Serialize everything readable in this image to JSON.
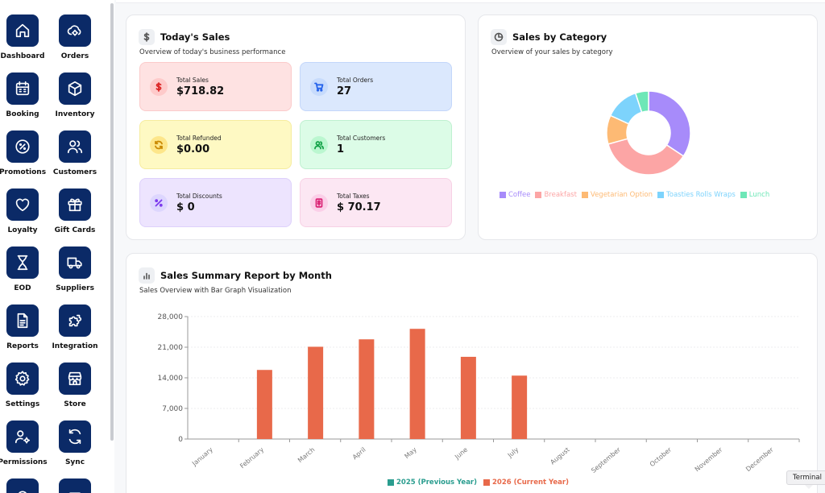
{
  "sidebar": {
    "items": [
      {
        "label": "Dashboard",
        "icon": "home-icon"
      },
      {
        "label": "Orders",
        "icon": "orders-icon"
      },
      {
        "label": "Booking",
        "icon": "calendar-icon"
      },
      {
        "label": "Inventory",
        "icon": "box-icon"
      },
      {
        "label": "Promotions",
        "icon": "promotion-icon"
      },
      {
        "label": "Customers",
        "icon": "users-icon"
      },
      {
        "label": "Loyalty",
        "icon": "heart-icon"
      },
      {
        "label": "Gift Cards",
        "icon": "gift-icon"
      },
      {
        "label": "EOD",
        "icon": "hourglass-icon"
      },
      {
        "label": "Suppliers",
        "icon": "truck-icon"
      },
      {
        "label": "Reports",
        "icon": "document-icon"
      },
      {
        "label": "Integration",
        "icon": "puzzle-icon"
      },
      {
        "label": "Settings",
        "icon": "gear-icon"
      },
      {
        "label": "Store",
        "icon": "store-icon"
      },
      {
        "label": "Permissions",
        "icon": "user-gear-icon"
      },
      {
        "label": "Sync",
        "icon": "sync-icon"
      }
    ]
  },
  "todays_sales": {
    "title": "Today's Sales",
    "subtitle": "Overview of today's business performance",
    "tiles": [
      {
        "label": "Total Sales",
        "value": "$718.82",
        "icon": "dollar-icon"
      },
      {
        "label": "Total Orders",
        "value": "27",
        "icon": "cart-icon"
      },
      {
        "label": "Total Refunded",
        "value": "$0.00",
        "icon": "refund-icon"
      },
      {
        "label": "Total Customers",
        "value": "1",
        "icon": "users-icon"
      },
      {
        "label": "Total Discounts",
        "value": "$ 0",
        "icon": "percent-icon"
      },
      {
        "label": "Total Taxes",
        "value": "$ 70.17",
        "icon": "tax-icon"
      }
    ]
  },
  "sales_by_category": {
    "title": "Sales by Category",
    "subtitle": "Overview of your sales by category"
  },
  "sales_summary": {
    "title": "Sales Summary Report by Month",
    "subtitle": "Sales Overview with Bar Graph Visualization"
  },
  "terminal_label": "Terminal",
  "colors": {
    "sidebar_icon_bg": "#0b2a67",
    "bar_current": "#e8694a",
    "bar_previous": "#2a9d8f"
  },
  "chart_data": [
    {
      "type": "pie",
      "title": "Sales by Category",
      "donut": true,
      "labels": [
        "Coffee",
        "Breakfast",
        "Vegetarian Option",
        "Toasties Rolls Wraps",
        "Lunch"
      ],
      "values": [
        34,
        36,
        11,
        13,
        5
      ],
      "colors": [
        "#a78bfa",
        "#fca5a5",
        "#fdba74",
        "#7dd3fc",
        "#6ee7b7"
      ],
      "legend_position": "bottom"
    },
    {
      "type": "bar",
      "title": "Sales Summary Report by Month",
      "categories": [
        "January",
        "February",
        "March",
        "April",
        "May",
        "June",
        "July",
        "August",
        "September",
        "October",
        "November",
        "December"
      ],
      "series": [
        {
          "name": "2025 (Previous Year)",
          "color": "#2a9d8f",
          "values": [
            0,
            0,
            0,
            0,
            0,
            0,
            0,
            0,
            0,
            0,
            0,
            0
          ]
        },
        {
          "name": "2026 (Current Year)",
          "color": "#e8694a",
          "values": [
            0,
            15800,
            21100,
            22800,
            25200,
            18800,
            14500,
            0,
            0,
            0,
            0,
            0
          ]
        }
      ],
      "yticks": [
        "0",
        "7,000",
        "14,000",
        "21,000",
        "28,000"
      ],
      "ylim": [
        0,
        28000
      ],
      "grid": true,
      "legend_position": "bottom"
    }
  ]
}
